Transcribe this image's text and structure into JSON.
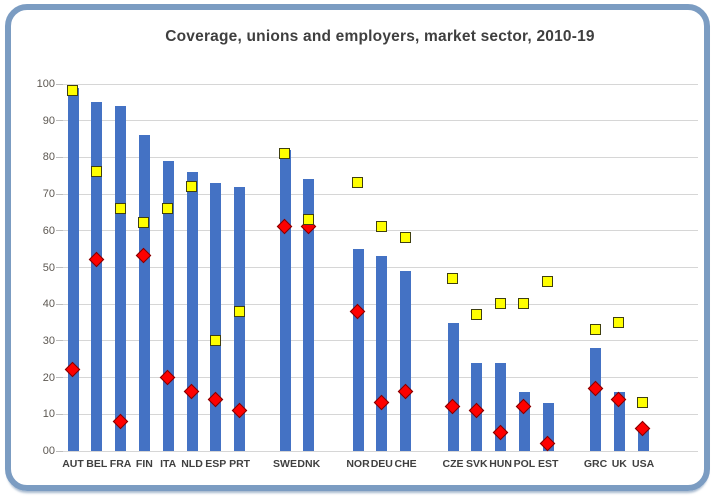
{
  "frame": {
    "border_color": "#7b9cc2"
  },
  "chart_data": {
    "type": "bar",
    "title": "Coverage, unions and employers, market sector, 2010-19",
    "xlabel": "",
    "ylabel": "",
    "ylim": [
      0,
      100
    ],
    "ytick_labels": [
      "100",
      "90",
      "80",
      "70",
      "60",
      "50",
      "40",
      "30",
      "20",
      "10",
      "00"
    ],
    "grid": true,
    "legend": "none",
    "colors": {
      "bar": "#4472c4",
      "employers_marker_fill": "#ffff00",
      "employers_marker_border": "#3f3f10",
      "unions_marker_fill": "#fe0000",
      "unions_marker_border": "#7f0000",
      "gridline": "#d6d6d6",
      "title_text": "#3f3f3f",
      "axis_text": "#5d5852"
    },
    "series": [
      {
        "name": "Coverage",
        "style": "bar",
        "color": "#4472c4"
      },
      {
        "name": "Unions",
        "style": "diamond-marker",
        "color": "#fe0000"
      },
      {
        "name": "Employers",
        "style": "square-marker",
        "color": "#ffff00"
      }
    ],
    "groups": [
      [
        {
          "country": "AUT",
          "coverage": 99,
          "employers": 98,
          "unions": 22
        },
        {
          "country": "BEL",
          "coverage": 95,
          "employers": 76,
          "unions": 52
        },
        {
          "country": "FRA",
          "coverage": 94,
          "employers": 66,
          "unions": 8
        },
        {
          "country": "FIN",
          "coverage": 86,
          "employers": 62,
          "unions": 53
        },
        {
          "country": "ITA",
          "coverage": 79,
          "employers": 66,
          "unions": 20
        },
        {
          "country": "NLD",
          "coverage": 76,
          "employers": 72,
          "unions": 16
        },
        {
          "country": "ESP",
          "coverage": 73,
          "employers": 30,
          "unions": 14
        },
        {
          "country": "PRT",
          "coverage": 72,
          "employers": 38,
          "unions": 11
        }
      ],
      [
        {
          "country": "SWE",
          "coverage": 82,
          "employers": 81,
          "unions": 61
        },
        {
          "country": "DNK",
          "coverage": 74,
          "employers": 63,
          "unions": 61
        }
      ],
      [
        {
          "country": "NOR",
          "coverage": 55,
          "employers": 73,
          "unions": 38
        },
        {
          "country": "DEU",
          "coverage": 53,
          "employers": 61,
          "unions": 13
        },
        {
          "country": "CHE",
          "coverage": 49,
          "employers": 58,
          "unions": 16
        }
      ],
      [
        {
          "country": "CZE",
          "coverage": 35,
          "employers": 47,
          "unions": 12
        },
        {
          "country": "SVK",
          "coverage": 24,
          "employers": 37,
          "unions": 11
        },
        {
          "country": "HUN",
          "coverage": 24,
          "employers": 40,
          "unions": 5
        },
        {
          "country": "POL",
          "coverage": 16,
          "employers": 40,
          "unions": 12
        },
        {
          "country": "EST",
          "coverage": 13,
          "employers": 46,
          "unions": 2
        }
      ],
      [
        {
          "country": "GRC",
          "coverage": 28,
          "employers": 33,
          "unions": 17
        },
        {
          "country": "UK",
          "coverage": 16,
          "employers": 35,
          "unions": 14
        },
        {
          "country": "USA",
          "coverage": 6,
          "employers": 13,
          "unions": 6
        }
      ]
    ]
  }
}
